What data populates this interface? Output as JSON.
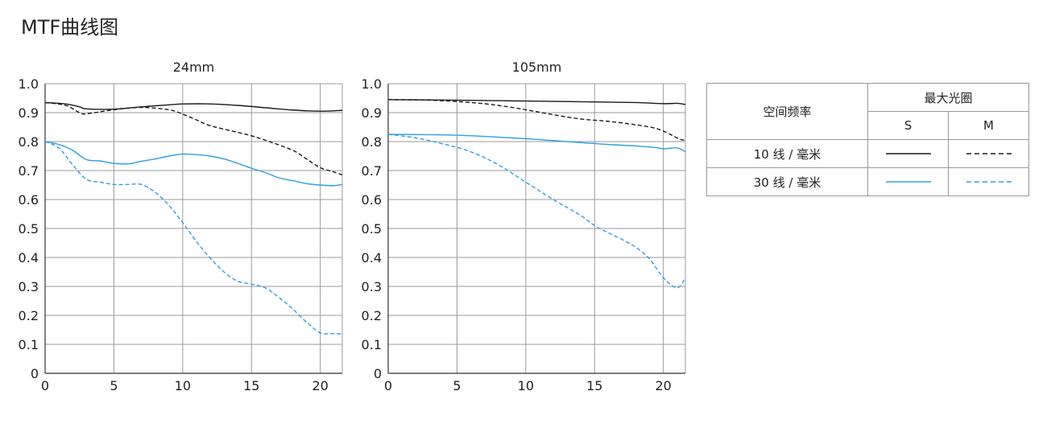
{
  "page": {
    "title": "MTF曲线图"
  },
  "legend": {
    "header_spatial": "空间频率",
    "header_aperture": "最大光圈",
    "col_s": "S",
    "col_m": "M",
    "row_10": "10 线 / 毫米",
    "row_30": "30 线 / 毫米",
    "colors": {
      "lp10": "#1a1a1a",
      "lp30": "#2e9fe0"
    }
  },
  "chart_data": [
    {
      "type": "line",
      "title": "24mm",
      "xlim": [
        0,
        21.6
      ],
      "ylim": [
        0,
        1.0
      ],
      "xticks": [
        0,
        5,
        10,
        15,
        20
      ],
      "yticks": [
        0,
        0.1,
        0.2,
        0.3,
        0.4,
        0.5,
        0.6,
        0.7,
        0.8,
        0.9,
        1.0
      ],
      "ytick_labels": [
        "0",
        "0.1",
        "0.2",
        "0.3",
        "0.4",
        "0.5",
        "0.6",
        "0.7",
        "0.8",
        "0.9",
        "1.0"
      ],
      "grid": true,
      "series": [
        {
          "freq": "10",
          "dir": "S",
          "color": "#1a1a1a",
          "dash": false,
          "points": [
            [
              0,
              0.935
            ],
            [
              1.5,
              0.93
            ],
            [
              2.5,
              0.92
            ],
            [
              3,
              0.913
            ],
            [
              5,
              0.912
            ],
            [
              7,
              0.92
            ],
            [
              9,
              0.927
            ],
            [
              10,
              0.93
            ],
            [
              12,
              0.93
            ],
            [
              14,
              0.925
            ],
            [
              16,
              0.917
            ],
            [
              18,
              0.909
            ],
            [
              20,
              0.905
            ],
            [
              21.6,
              0.908
            ]
          ]
        },
        {
          "freq": "10",
          "dir": "M",
          "color": "#1a1a1a",
          "dash": true,
          "points": [
            [
              0,
              0.935
            ],
            [
              1.5,
              0.925
            ],
            [
              2.5,
              0.9
            ],
            [
              3,
              0.896
            ],
            [
              5,
              0.91
            ],
            [
              7,
              0.918
            ],
            [
              9,
              0.91
            ],
            [
              10,
              0.895
            ],
            [
              11,
              0.875
            ],
            [
              12,
              0.855
            ],
            [
              14,
              0.832
            ],
            [
              15,
              0.82
            ],
            [
              16,
              0.805
            ],
            [
              18,
              0.77
            ],
            [
              19,
              0.74
            ],
            [
              20,
              0.71
            ],
            [
              21,
              0.695
            ],
            [
              21.6,
              0.685
            ]
          ]
        },
        {
          "freq": "30",
          "dir": "S",
          "color": "#2e9fe0",
          "dash": false,
          "points": [
            [
              0,
              0.8
            ],
            [
              1,
              0.79
            ],
            [
              2,
              0.77
            ],
            [
              3,
              0.738
            ],
            [
              4,
              0.733
            ],
            [
              5,
              0.725
            ],
            [
              6,
              0.723
            ],
            [
              7,
              0.732
            ],
            [
              8,
              0.74
            ],
            [
              9,
              0.75
            ],
            [
              10,
              0.757
            ],
            [
              11,
              0.755
            ],
            [
              12,
              0.75
            ],
            [
              13,
              0.74
            ],
            [
              14,
              0.725
            ],
            [
              15,
              0.708
            ],
            [
              16,
              0.693
            ],
            [
              17,
              0.675
            ],
            [
              18,
              0.665
            ],
            [
              19,
              0.655
            ],
            [
              20,
              0.65
            ],
            [
              21,
              0.648
            ],
            [
              21.6,
              0.652
            ]
          ]
        },
        {
          "freq": "30",
          "dir": "M",
          "color": "#2e9fe0",
          "dash": true,
          "points": [
            [
              0,
              0.8
            ],
            [
              1,
              0.778
            ],
            [
              2,
              0.72
            ],
            [
              3,
              0.67
            ],
            [
              4,
              0.66
            ],
            [
              5,
              0.652
            ],
            [
              6,
              0.652
            ],
            [
              7,
              0.652
            ],
            [
              8,
              0.625
            ],
            [
              9,
              0.58
            ],
            [
              10,
              0.52
            ],
            [
              11,
              0.455
            ],
            [
              12,
              0.398
            ],
            [
              13,
              0.35
            ],
            [
              14,
              0.318
            ],
            [
              15,
              0.308
            ],
            [
              16,
              0.295
            ],
            [
              17,
              0.262
            ],
            [
              18,
              0.222
            ],
            [
              19,
              0.177
            ],
            [
              20,
              0.14
            ],
            [
              21,
              0.137
            ],
            [
              21.6,
              0.136
            ]
          ]
        }
      ]
    },
    {
      "type": "line",
      "title": "105mm",
      "xlim": [
        0,
        21.6
      ],
      "ylim": [
        0,
        1.0
      ],
      "xticks": [
        0,
        5,
        10,
        15,
        20
      ],
      "yticks": [
        0,
        0.1,
        0.2,
        0.3,
        0.4,
        0.5,
        0.6,
        0.7,
        0.8,
        0.9,
        1.0
      ],
      "ytick_labels": [
        "0",
        "0.1",
        "0.2",
        "0.3",
        "0.4",
        "0.5",
        "0.6",
        "0.7",
        "0.8",
        "0.9",
        "1.0"
      ],
      "grid": true,
      "series": [
        {
          "freq": "10",
          "dir": "S",
          "color": "#1a1a1a",
          "dash": false,
          "points": [
            [
              0,
              0.945
            ],
            [
              5,
              0.943
            ],
            [
              10,
              0.94
            ],
            [
              15,
              0.937
            ],
            [
              18,
              0.935
            ],
            [
              20,
              0.931
            ],
            [
              21,
              0.932
            ],
            [
              21.6,
              0.928
            ]
          ]
        },
        {
          "freq": "10",
          "dir": "M",
          "color": "#1a1a1a",
          "dash": true,
          "points": [
            [
              0,
              0.945
            ],
            [
              3,
              0.943
            ],
            [
              6,
              0.935
            ],
            [
              8,
              0.925
            ],
            [
              10,
              0.91
            ],
            [
              12,
              0.893
            ],
            [
              14,
              0.878
            ],
            [
              16,
              0.87
            ],
            [
              18,
              0.858
            ],
            [
              19.5,
              0.845
            ],
            [
              20.5,
              0.825
            ],
            [
              21.2,
              0.808
            ],
            [
              21.6,
              0.805
            ]
          ]
        },
        {
          "freq": "30",
          "dir": "S",
          "color": "#2e9fe0",
          "dash": false,
          "points": [
            [
              0,
              0.825
            ],
            [
              5,
              0.822
            ],
            [
              10,
              0.81
            ],
            [
              13,
              0.8
            ],
            [
              16,
              0.79
            ],
            [
              18,
              0.785
            ],
            [
              19.5,
              0.779
            ],
            [
              20,
              0.775
            ],
            [
              21,
              0.778
            ],
            [
              21.6,
              0.765
            ]
          ]
        },
        {
          "freq": "30",
          "dir": "M",
          "color": "#2e9fe0",
          "dash": true,
          "points": [
            [
              0,
              0.825
            ],
            [
              2,
              0.813
            ],
            [
              4,
              0.792
            ],
            [
              6,
              0.765
            ],
            [
              8,
              0.72
            ],
            [
              10,
              0.66
            ],
            [
              12,
              0.6
            ],
            [
              14,
              0.545
            ],
            [
              15,
              0.51
            ],
            [
              16,
              0.485
            ],
            [
              17,
              0.462
            ],
            [
              18,
              0.435
            ],
            [
              19,
              0.395
            ],
            [
              20,
              0.33
            ],
            [
              21,
              0.295
            ],
            [
              21.6,
              0.33
            ]
          ]
        }
      ]
    }
  ]
}
